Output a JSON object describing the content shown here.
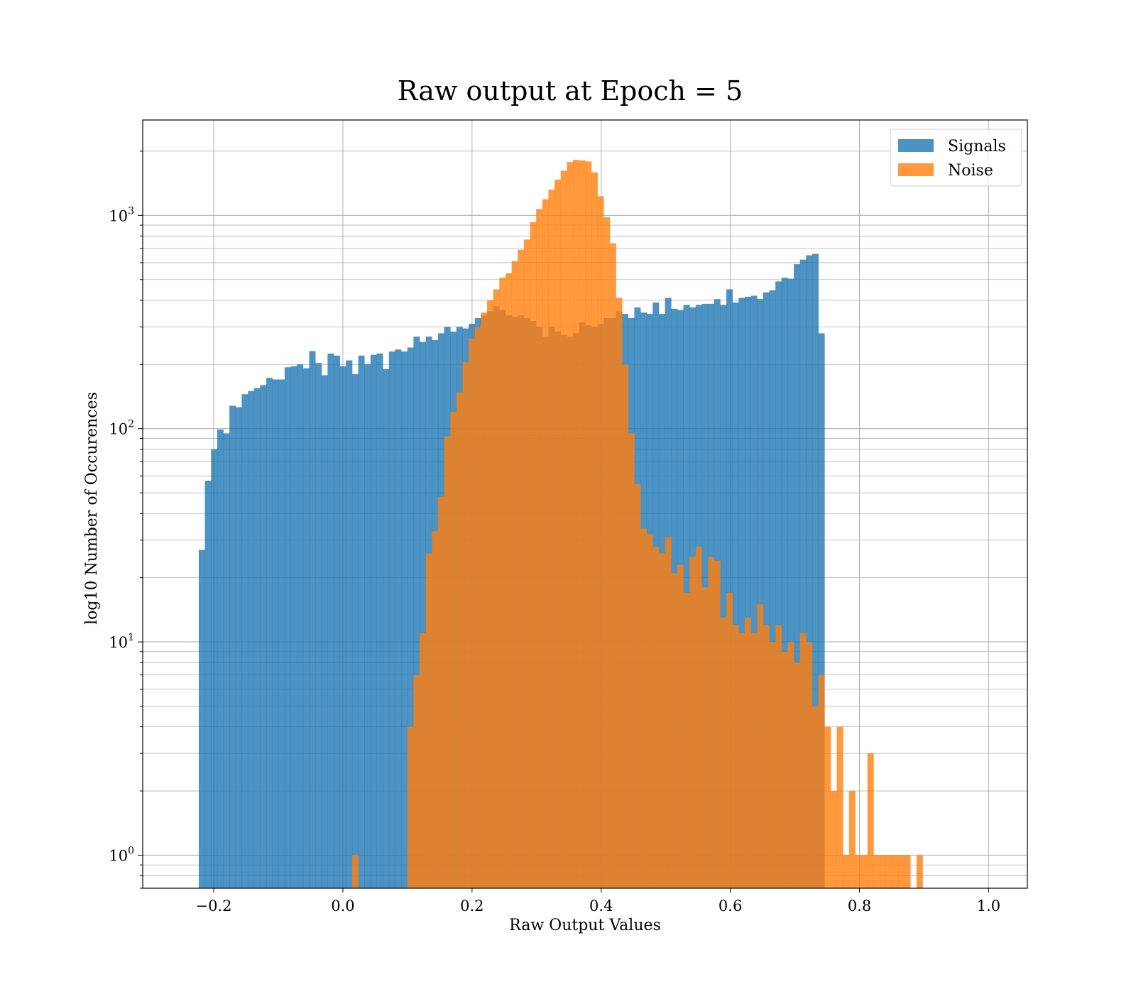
{
  "chart_data": {
    "type": "bar",
    "title": "Raw output at Epoch = 5",
    "xlabel": "Raw Output Values",
    "ylabel": "log10 Number of Occurences",
    "xlim": [
      -0.31,
      1.06
    ],
    "ylim": [
      0.7,
      2800
    ],
    "yscale": "log",
    "grid": true,
    "legend_position": "top-right",
    "x_ticks": [
      -0.2,
      0.0,
      0.2,
      0.4,
      0.6,
      0.8,
      1.0
    ],
    "x_tick_labels": [
      "−0.2",
      "0.0",
      "0.2",
      "0.4",
      "0.6",
      "0.8",
      "1.0"
    ],
    "y_ticks": [
      {
        "value": 1,
        "base": "10",
        "exp": "0"
      },
      {
        "value": 10,
        "base": "10",
        "exp": "1"
      },
      {
        "value": 100,
        "base": "10",
        "exp": "2"
      },
      {
        "value": 1000,
        "base": "10",
        "exp": "3"
      }
    ],
    "bin_width": 0.0095,
    "series": [
      {
        "name": "Signals",
        "color": "#1f77b4",
        "opacity": 0.8,
        "bin_start": -0.2232,
        "values": [
          27,
          57,
          80,
          99,
          95,
          128,
          126,
          145,
          150,
          155,
          160,
          173,
          170,
          170,
          194,
          196,
          200,
          192,
          231,
          203,
          178,
          225,
          220,
          196,
          209,
          180,
          220,
          200,
          222,
          225,
          190,
          230,
          235,
          230,
          240,
          270,
          255,
          270,
          260,
          280,
          300,
          285,
          300,
          295,
          310,
          330,
          340,
          355,
          375,
          360,
          340,
          335,
          340,
          330,
          320,
          300,
          270,
          300,
          285,
          275,
          270,
          280,
          315,
          305,
          300,
          310,
          330,
          330,
          355,
          345,
          330,
          370,
          350,
          345,
          390,
          345,
          410,
          365,
          360,
          380,
          370,
          380,
          385,
          385,
          405,
          380,
          450,
          390,
          410,
          415,
          420,
          405,
          435,
          445,
          490,
          510,
          505,
          590,
          620,
          650,
          660,
          280
        ]
      },
      {
        "name": "Noise",
        "color": "#ff7f0e",
        "opacity": 0.8,
        "bin_start": 0.0143,
        "values": [
          1,
          0,
          0,
          0,
          0,
          0,
          0,
          0,
          0,
          4,
          7,
          11,
          26,
          33,
          48,
          92,
          120,
          148,
          205,
          265,
          300,
          350,
          400,
          450,
          510,
          535,
          610,
          690,
          770,
          930,
          1070,
          1190,
          1320,
          1470,
          1620,
          1780,
          1820,
          1810,
          1790,
          1590,
          1230,
          980,
          740,
          410,
          200,
          95,
          55,
          34,
          32,
          28,
          26,
          31,
          21,
          23,
          17,
          25,
          28,
          18,
          25,
          24,
          13,
          17,
          12,
          11,
          13,
          11,
          15,
          12,
          10,
          12,
          9,
          10,
          8,
          11,
          10,
          5,
          7,
          4,
          2,
          4,
          1,
          2,
          1,
          1,
          3,
          1,
          1,
          1,
          1,
          1,
          1,
          0,
          1
        ]
      }
    ]
  }
}
